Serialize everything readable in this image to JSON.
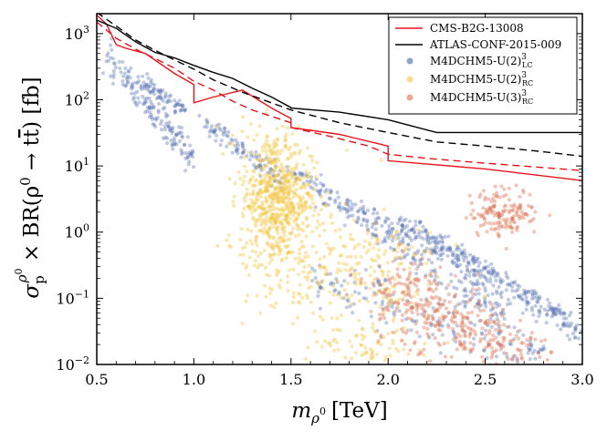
{
  "chart_data": {
    "type": "scatter",
    "title": "",
    "xlabel": "m_ρ0 [TeV]",
    "xlabel_parts": {
      "main": "m",
      "sub": "ρ",
      "subsup": "0",
      "unit": "[TeV]"
    },
    "ylabel": "σ_p^ρ0 × BR(ρ0 → tt̄) [fb]",
    "ylabel_parts": {
      "sigma": "σ",
      "sub": "p",
      "sup": "ρ",
      "supsup": "0",
      "middle": " × BR(ρ",
      "rho_sup": "0",
      "arrow": " → t",
      "tbar": "t",
      "end": ") [fb]"
    },
    "xlim": [
      0.5,
      3.0
    ],
    "ylim": [
      0.01,
      2000
    ],
    "yscale": "log",
    "grid": false,
    "legend_position": "top-right",
    "x_ticks": [
      {
        "value": 0.5,
        "label": "0.5"
      },
      {
        "value": 1.0,
        "label": "1.0"
      },
      {
        "value": 1.5,
        "label": "1.5"
      },
      {
        "value": 2.0,
        "label": "2.0"
      },
      {
        "value": 2.5,
        "label": "2.5"
      },
      {
        "value": 3.0,
        "label": "3.0"
      }
    ],
    "y_ticks": [
      {
        "value": 0.01,
        "base": "10",
        "exp": "−2"
      },
      {
        "value": 0.1,
        "base": "10",
        "exp": "−1"
      },
      {
        "value": 1,
        "base": "10",
        "exp": "0"
      },
      {
        "value": 10,
        "base": "10",
        "exp": "1"
      },
      {
        "value": 100,
        "base": "10",
        "exp": "2"
      },
      {
        "value": 1000,
        "base": "10",
        "exp": "3"
      }
    ],
    "lines": [
      {
        "name": "CMS-B2G-13008 observed",
        "color": "#e8141c",
        "dash": "solid",
        "x": [
          0.5,
          0.55,
          0.6,
          0.65,
          0.75,
          0.9,
          1.0,
          1.0,
          1.1,
          1.25,
          1.4,
          1.5,
          1.5,
          1.75,
          2.0,
          2.0,
          2.5,
          3.0
        ],
        "y": [
          1900,
          1400,
          680,
          600,
          500,
          250,
          170,
          90,
          110,
          140,
          75,
          52,
          38,
          30,
          20,
          12,
          9,
          6
        ]
      },
      {
        "name": "CMS-B2G-13008 expected",
        "color": "#e8141c",
        "dash": "dashed",
        "x": [
          0.5,
          0.6,
          0.7,
          0.8,
          0.9,
          1.0,
          1.1,
          1.2,
          1.3,
          1.5,
          1.5,
          1.7,
          1.9,
          2.0,
          2.2,
          2.5,
          3.0
        ],
        "y": [
          1500,
          850,
          580,
          420,
          300,
          190,
          140,
          95,
          70,
          45,
          38,
          28,
          20,
          15,
          13,
          11,
          8.5
        ]
      },
      {
        "name": "ATLAS-CONF-2015-009 observed",
        "color": "#000000",
        "dash": "solid",
        "x": [
          0.5,
          0.6,
          0.7,
          0.8,
          0.9,
          1.0,
          1.1,
          1.2,
          1.3,
          1.4,
          1.5,
          1.5,
          1.75,
          2.0,
          2.25,
          2.5,
          2.75,
          3.0
        ],
        "y": [
          1600,
          1200,
          750,
          520,
          430,
          330,
          260,
          210,
          150,
          110,
          76,
          75,
          65,
          50,
          32,
          32,
          32,
          32
        ]
      },
      {
        "name": "ATLAS-CONF-2015-009 expected",
        "color": "#000000",
        "dash": "dashed",
        "x": [
          0.5,
          0.6,
          0.7,
          0.8,
          0.9,
          1.0,
          1.1,
          1.25,
          1.5,
          1.75,
          2.0,
          2.25,
          2.5,
          2.75,
          3.0
        ],
        "y": [
          2100,
          1300,
          800,
          560,
          400,
          290,
          200,
          130,
          70,
          45,
          32,
          23,
          20,
          17,
          14
        ]
      }
    ],
    "series": [
      {
        "name": "M4DCHM5-U(2)³_LC",
        "color": "#4a68ab",
        "bands": [
          {
            "x0": 0.55,
            "y0": 500,
            "x1": 1.0,
            "y1": 12,
            "n": 160,
            "spread": 0.12
          },
          {
            "x0": 0.72,
            "y0": 190,
            "x1": 0.95,
            "y1": 70,
            "n": 70,
            "spread": 0.06
          },
          {
            "x0": 1.05,
            "y0": 50,
            "x1": 1.45,
            "y1": 6,
            "n": 100,
            "spread": 0.07
          },
          {
            "x0": 1.5,
            "y0": 8,
            "x1": 3.0,
            "y1": 0.03,
            "n": 240,
            "spread": 0.08
          },
          {
            "x0": 1.6,
            "y0": 5,
            "x1": 2.6,
            "y1": 0.05,
            "n": 160,
            "spread": 0.12
          },
          {
            "x0": 2.05,
            "y0": 1.5,
            "x1": 2.55,
            "y1": 0.25,
            "n": 90,
            "spread": 0.08
          },
          {
            "x0": 2.25,
            "y0": 0.7,
            "x1": 2.95,
            "y1": 0.05,
            "n": 100,
            "spread": 0.04
          },
          {
            "x0": 1.6,
            "y0": 0.2,
            "x1": 2.8,
            "y1": 0.012,
            "n": 180,
            "spread": 0.2
          }
        ]
      },
      {
        "name": "M4DCHM5-U(2)³_RC",
        "color": "#f2c642",
        "clusters": [
          {
            "x": 1.42,
            "y": 3.5,
            "sx": 0.09,
            "sy": 0.5,
            "n": 620
          },
          {
            "x": 1.55,
            "y": 0.4,
            "sx": 0.15,
            "sy": 0.6,
            "n": 160
          },
          {
            "x": 1.9,
            "y": 0.3,
            "sx": 0.18,
            "sy": 0.45,
            "n": 150
          },
          {
            "x": 1.9,
            "y": 0.02,
            "sx": 0.12,
            "sy": 0.2,
            "n": 70
          }
        ]
      },
      {
        "name": "M4DCHM5-U(3)³_RC",
        "color": "#dd6e4e",
        "clusters": [
          {
            "x": 2.6,
            "y": 2.0,
            "sx": 0.09,
            "sy": 0.18,
            "n": 150
          },
          {
            "x": 2.1,
            "y": 0.12,
            "sx": 0.1,
            "sy": 0.3,
            "n": 140
          },
          {
            "x": 2.35,
            "y": 0.04,
            "sx": 0.14,
            "sy": 0.28,
            "n": 150
          },
          {
            "x": 2.6,
            "y": 0.018,
            "sx": 0.15,
            "sy": 0.15,
            "n": 80
          }
        ]
      }
    ],
    "legend": [
      {
        "label": "CMS-B2G-13008",
        "kind": "line",
        "color": "#e8141c"
      },
      {
        "label": "ATLAS-CONF-2015-009",
        "kind": "line",
        "color": "#000000"
      },
      {
        "label": "M4DCHM5-U(2)",
        "sup": "3",
        "sub": "LC",
        "kind": "marker",
        "color": "#4a68ab"
      },
      {
        "label": "M4DCHM5-U(2)",
        "sup": "3",
        "sub": "RC",
        "kind": "marker",
        "color": "#f2c642"
      },
      {
        "label": "M4DCHM5-U(3)",
        "sup": "3",
        "sub": "RC",
        "kind": "marker",
        "color": "#dd6e4e"
      }
    ]
  }
}
